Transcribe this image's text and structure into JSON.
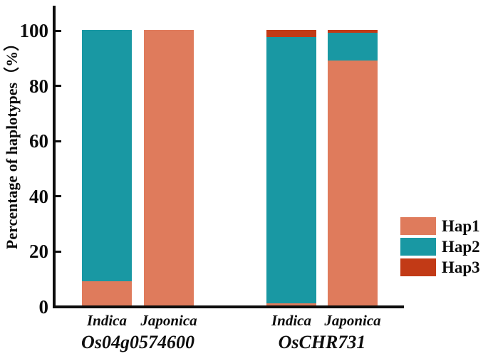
{
  "colors": {
    "hap1": "#DF7B5C",
    "hap2": "#1998A3",
    "hap3": "#C23A16",
    "axis": "#0d0d0d",
    "background": "#ffffff"
  },
  "chart_data": {
    "type": "bar",
    "stacked": true,
    "title": "",
    "xlabel": "",
    "ylabel": "Percentage of haplotypes（%）",
    "ylim": [
      0,
      100
    ],
    "yticks": [
      0,
      20,
      40,
      60,
      80,
      100
    ],
    "grid": false,
    "legend_position": "right",
    "series_order": [
      "Hap1",
      "Hap2",
      "Hap3"
    ],
    "legend": [
      {
        "label": "Hap1",
        "color": "#DF7B5C"
      },
      {
        "label": "Hap2",
        "color": "#1998A3"
      },
      {
        "label": "Hap3",
        "color": "#C23A16"
      }
    ],
    "groups": [
      {
        "label": "Os04g0574600",
        "bars": [
          {
            "label": "Indica",
            "values": {
              "Hap1": 9,
              "Hap2": 91,
              "Hap3": 0
            }
          },
          {
            "label": "Japonica",
            "values": {
              "Hap1": 100,
              "Hap2": 0,
              "Hap3": 0
            }
          }
        ]
      },
      {
        "label": "OsCHR731",
        "bars": [
          {
            "label": "Indica",
            "values": {
              "Hap1": 1,
              "Hap2": 96.5,
              "Hap3": 2.5
            }
          },
          {
            "label": "Japonica",
            "values": {
              "Hap1": 89,
              "Hap2": 10,
              "Hap3": 1
            }
          }
        ]
      }
    ]
  }
}
